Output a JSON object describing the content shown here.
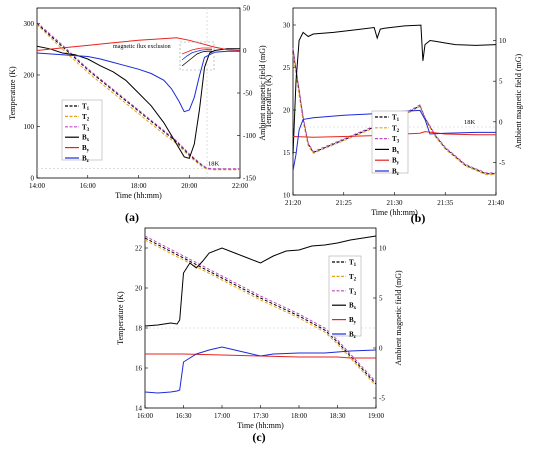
{
  "colors": {
    "T1": "#000000",
    "T2": "#e8a317",
    "T3": "#c04ac4",
    "Bx": "#000000",
    "By": "#e8231e",
    "Bz": "#1c2bd6",
    "ref_line": "#c9c9c9"
  },
  "chart_data": [
    {
      "id": "a",
      "panel_label": "(a)",
      "type": "line",
      "xlabel": "Time (hh:mm)",
      "ylabel_left": "Temperature (K)",
      "ylabel_right": "Ambient magnetic field (mG)",
      "xlim": [
        14,
        22
      ],
      "x_ticks": [
        "14:00",
        "16:00",
        "18:00",
        "20:00",
        "22:00"
      ],
      "x_tick_values": [
        14,
        16,
        18,
        20,
        22
      ],
      "ylim_left": [
        0,
        330
      ],
      "y_ticks_left": [
        0,
        100,
        200,
        300
      ],
      "ylim_right": [
        -150,
        50
      ],
      "y_ticks_right": [
        -150,
        -100,
        -50,
        0,
        50
      ],
      "annotations": [
        {
          "text": "magnetic flux exclusion"
        },
        {
          "text": "18K"
        }
      ],
      "ref_temp": 18,
      "ref_time": 20.7,
      "legend": {
        "placement": "center-left",
        "entries": [
          "T1",
          "T2",
          "T3",
          "Bx",
          "By",
          "Bz"
        ]
      },
      "series": [
        {
          "name": "T1",
          "axis": "left",
          "style": "dashed",
          "color": "#000000",
          "x": [
            14,
            15,
            16,
            17,
            18,
            19,
            19.5,
            20,
            20.3,
            20.5,
            20.7,
            21,
            22
          ],
          "y": [
            300,
            255,
            210,
            170,
            130,
            90,
            70,
            45,
            32,
            25,
            18,
            17,
            17
          ]
        },
        {
          "name": "T2",
          "axis": "left",
          "style": "dashed",
          "color": "#e8a317",
          "x": [
            14,
            15,
            16,
            17,
            18,
            19,
            19.5,
            20,
            20.3,
            20.5,
            20.7,
            21,
            22
          ],
          "y": [
            298,
            250,
            205,
            165,
            125,
            85,
            67,
            42,
            30,
            22,
            17,
            16,
            16
          ]
        },
        {
          "name": "T3",
          "axis": "left",
          "style": "dashed",
          "color": "#c04ac4",
          "x": [
            14,
            15,
            16,
            17,
            18,
            19,
            19.5,
            20,
            20.3,
            20.5,
            20.7,
            21,
            22
          ],
          "y": [
            302,
            258,
            212,
            172,
            132,
            92,
            72,
            47,
            34,
            26,
            19,
            18,
            18
          ]
        },
        {
          "name": "Bx",
          "axis": "right",
          "style": "solid",
          "color": "#000000",
          "x": [
            14,
            14.5,
            15,
            15.5,
            16,
            16.5,
            17,
            17.5,
            18,
            18.5,
            19,
            19.3,
            19.6,
            19.8,
            20,
            20.2,
            20.4,
            20.6,
            20.8,
            21,
            21.5,
            22
          ],
          "y": [
            5,
            2,
            -3,
            -5,
            -10,
            -18,
            -25,
            -35,
            -50,
            -65,
            -85,
            -100,
            -115,
            -125,
            -127,
            -110,
            -70,
            -20,
            -3,
            0,
            2,
            2
          ]
        },
        {
          "name": "By",
          "axis": "right",
          "style": "solid",
          "color": "#e8231e",
          "x": [
            14,
            15,
            16,
            17,
            18,
            19,
            19.5,
            20,
            20.5,
            21,
            21.5,
            22
          ],
          "y": [
            0,
            3,
            6,
            9,
            12,
            14,
            15,
            12,
            8,
            4,
            1,
            0
          ]
        },
        {
          "name": "Bz",
          "axis": "right",
          "style": "solid",
          "color": "#1c2bd6",
          "x": [
            14,
            15,
            16,
            16.5,
            17,
            17.5,
            18,
            18.5,
            19,
            19.3,
            19.6,
            19.8,
            20,
            20.2,
            20.4,
            20.6,
            21,
            21.5,
            22
          ],
          "y": [
            -3,
            -5,
            -7,
            -10,
            -14,
            -18,
            -22,
            -27,
            -35,
            -45,
            -60,
            -72,
            -70,
            -55,
            -30,
            -8,
            -2,
            -1,
            -1
          ]
        }
      ],
      "inset": {
        "x": [
          20,
          20.1,
          20.2,
          20.3,
          20.4,
          20.5,
          20.6
        ],
        "curves": {
          "Bx": [
            -55,
            -45,
            -35,
            -25,
            -20,
            -18,
            -18
          ],
          "By": [
            -25,
            -20,
            -15,
            -12,
            -10,
            -10,
            -10
          ],
          "Bz": [
            -40,
            -30,
            -22,
            -18,
            -15,
            -14,
            -14
          ]
        }
      }
    },
    {
      "id": "b",
      "panel_label": "(b)",
      "type": "line",
      "xlabel": "Time (hh:mm)",
      "ylabel_left": "Temperature (K)",
      "ylabel_right": "Ambient magnetic field (mG)",
      "xlim": [
        20,
        40
      ],
      "x_ticks": [
        "21:20",
        "21:25",
        "21:30",
        "21:35",
        "21:40"
      ],
      "x_tick_values": [
        20,
        25,
        30,
        35,
        40
      ],
      "ylim_left": [
        10,
        32
      ],
      "y_ticks_left": [
        10,
        15,
        20,
        25,
        30
      ],
      "ylim_right": [
        -9,
        14
      ],
      "y_ticks_right": [
        -5,
        0,
        5,
        10
      ],
      "annotations": [
        {
          "text": "18K"
        }
      ],
      "ref_temp": 18,
      "legend": {
        "placement": "bottom-left",
        "entries": [
          "T1",
          "T2",
          "T3",
          "Bx",
          "By",
          "Bz"
        ]
      },
      "series": [
        {
          "name": "T1",
          "axis": "left",
          "style": "dashed",
          "color": "#000000",
          "x": [
            20,
            20.5,
            21,
            21.5,
            22,
            23,
            25,
            27,
            29,
            31,
            32.5,
            33,
            34,
            35,
            36,
            37,
            38,
            39,
            40
          ],
          "y": [
            27,
            23,
            19,
            16,
            15,
            15.5,
            16.5,
            17.5,
            18.5,
            19.5,
            20.5,
            19,
            17,
            15.5,
            14.5,
            13.5,
            13,
            12.5,
            12.5
          ]
        },
        {
          "name": "T2",
          "axis": "left",
          "style": "dashed",
          "color": "#e8a317",
          "x": [
            20,
            20.5,
            21,
            21.5,
            22,
            23,
            25,
            27,
            29,
            31,
            32.5,
            33,
            34,
            35,
            36,
            37,
            38,
            39,
            40
          ],
          "y": [
            26.5,
            22.5,
            18.7,
            15.8,
            14.9,
            15.4,
            16.4,
            17.4,
            18.4,
            19.4,
            20.4,
            18.9,
            16.9,
            15.4,
            14.4,
            13.4,
            12.9,
            12.4,
            12.4
          ]
        },
        {
          "name": "T3",
          "axis": "left",
          "style": "dashed",
          "color": "#c04ac4",
          "x": [
            20,
            20.5,
            21,
            21.5,
            22,
            23,
            25,
            27,
            29,
            31,
            32.5,
            33,
            34,
            35,
            36,
            37,
            38,
            39,
            40
          ],
          "y": [
            27.3,
            23.2,
            19.2,
            16.1,
            15.1,
            15.6,
            16.6,
            17.6,
            18.6,
            19.6,
            20.6,
            19.1,
            17.1,
            15.6,
            14.6,
            13.6,
            13.1,
            12.6,
            12.6
          ]
        },
        {
          "name": "Bx",
          "axis": "right",
          "style": "solid",
          "color": "#000000",
          "x": [
            20,
            20.3,
            20.6,
            21,
            21.5,
            22,
            24,
            26,
            28,
            28.3,
            28.6,
            29,
            31,
            32.6,
            32.8,
            33,
            33.5,
            34,
            35,
            36,
            38,
            40
          ],
          "y": [
            -4,
            5,
            10,
            11,
            10.5,
            10.8,
            11,
            11.3,
            11.6,
            10.3,
            11.4,
            11.5,
            11.8,
            11.9,
            7.5,
            9.5,
            10,
            9.9,
            9.7,
            9.5,
            9.4,
            9.5
          ]
        },
        {
          "name": "By",
          "axis": "right",
          "style": "solid",
          "color": "#e8231e",
          "x": [
            20,
            22,
            25,
            28,
            31,
            32.5,
            33,
            35,
            38,
            40
          ],
          "y": [
            -1.8,
            -1.9,
            -1.8,
            -1.7,
            -1.5,
            -1.4,
            -1.2,
            -1.5,
            -1.6,
            -1.6
          ]
        },
        {
          "name": "Bz",
          "axis": "right",
          "style": "solid",
          "color": "#1c2bd6",
          "x": [
            20,
            20.3,
            20.6,
            21,
            22,
            25,
            28,
            31,
            32.5,
            33,
            33.5,
            35,
            38,
            40
          ],
          "y": [
            -6,
            -4,
            -1,
            0.3,
            0.5,
            0.8,
            1,
            1.3,
            1.4,
            0.3,
            -1.5,
            -1.4,
            -1.3,
            -1.3
          ]
        }
      ]
    },
    {
      "id": "c",
      "panel_label": "(c)",
      "type": "line",
      "xlabel": "Time (hh:mm)",
      "ylabel_left": "Temperature (K)",
      "ylabel_right": "Ambient magnetic field (mG)",
      "xlim": [
        0,
        180
      ],
      "x_ticks": [
        "16:00",
        "16:30",
        "17:00",
        "17:30",
        "18:00",
        "18:30",
        "19:00"
      ],
      "x_tick_values": [
        0,
        30,
        60,
        90,
        120,
        150,
        180
      ],
      "ylim_left": [
        14,
        23
      ],
      "y_ticks_left": [
        14,
        16,
        18,
        20,
        22
      ],
      "ylim_right": [
        -6,
        12
      ],
      "y_ticks_right": [
        -5,
        0,
        5,
        10
      ],
      "annotations": [
        {
          "text": "18K"
        }
      ],
      "ref_temp": 18,
      "legend": {
        "placement": "top-right",
        "entries": [
          "T1",
          "T2",
          "T3",
          "Bx",
          "By",
          "Bz"
        ]
      },
      "series": [
        {
          "name": "T1",
          "axis": "left",
          "style": "dashed",
          "color": "#000000",
          "x": [
            0,
            30,
            60,
            90,
            120,
            140,
            150,
            160,
            170,
            180
          ],
          "y": [
            22.5,
            21.5,
            20.5,
            19.5,
            18.6,
            17.9,
            17.3,
            16.6,
            15.9,
            15.2
          ]
        },
        {
          "name": "T2",
          "axis": "left",
          "style": "dashed",
          "color": "#e8a317",
          "x": [
            0,
            30,
            60,
            90,
            120,
            140,
            150,
            160,
            170,
            180
          ],
          "y": [
            22.4,
            21.4,
            20.4,
            19.4,
            18.5,
            17.8,
            17.2,
            16.5,
            15.8,
            15.1
          ]
        },
        {
          "name": "T3",
          "axis": "left",
          "style": "dashed",
          "color": "#c04ac4",
          "x": [
            0,
            30,
            60,
            90,
            120,
            140,
            150,
            160,
            170,
            180
          ],
          "y": [
            22.6,
            21.6,
            20.6,
            19.6,
            18.7,
            18,
            17.4,
            16.7,
            16,
            15.3
          ]
        },
        {
          "name": "Bx",
          "axis": "right",
          "style": "solid",
          "color": "#000000",
          "x": [
            0,
            10,
            20,
            25,
            27,
            30,
            35,
            40,
            45,
            50,
            60,
            70,
            80,
            90,
            100,
            110,
            120,
            130,
            140,
            150,
            160,
            170,
            180
          ],
          "y": [
            2.2,
            2.3,
            2.5,
            2.4,
            2.8,
            7.5,
            8.5,
            8,
            8.7,
            9.5,
            10,
            9.5,
            9,
            8.5,
            9.2,
            9.7,
            9.8,
            10.2,
            10.3,
            10.5,
            10.8,
            11,
            11.2
          ]
        },
        {
          "name": "By",
          "axis": "right",
          "style": "solid",
          "color": "#e8231e",
          "x": [
            0,
            30,
            60,
            90,
            120,
            150,
            160,
            170,
            180
          ],
          "y": [
            -0.6,
            -0.6,
            -0.7,
            -0.8,
            -0.9,
            -0.9,
            -1,
            -1,
            -1
          ]
        },
        {
          "name": "Bz",
          "axis": "right",
          "style": "solid",
          "color": "#1c2bd6",
          "x": [
            0,
            10,
            20,
            25,
            27,
            30,
            40,
            50,
            60,
            70,
            80,
            90,
            100,
            120,
            140,
            160,
            180
          ],
          "y": [
            -4.4,
            -4.5,
            -4.4,
            -4.3,
            -4.2,
            -1.4,
            -0.6,
            -0.2,
            0.1,
            -0.2,
            -0.5,
            -0.8,
            -0.6,
            -0.5,
            -0.5,
            -0.3,
            -0.2
          ]
        }
      ]
    }
  ]
}
